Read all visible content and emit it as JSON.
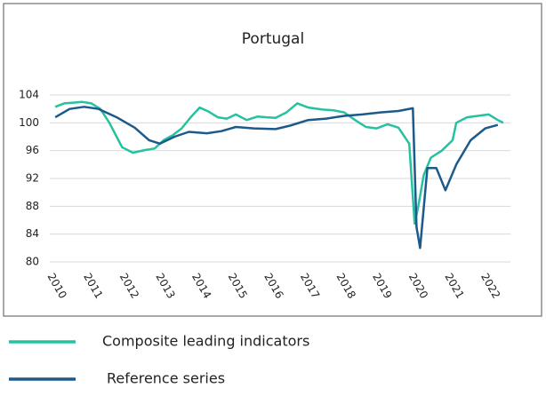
{
  "chart_data": {
    "type": "line",
    "title": "Portugal",
    "xlim": [
      2009.85,
      2022.6
    ],
    "xticks": [
      2010,
      2011,
      2012,
      2013,
      2014,
      2015,
      2016,
      2017,
      2018,
      2019,
      2020,
      2021,
      2022
    ],
    "ylim": [
      80,
      104
    ],
    "yticks": [
      80,
      84,
      88,
      92,
      96,
      100,
      104
    ],
    "grid": true,
    "series": [
      {
        "name": "Composite leading indicators",
        "color": "#26c2a0",
        "x": [
          2010,
          2010.25,
          2010.5,
          2010.75,
          2011,
          2011.25,
          2011.5,
          2011.85,
          2012.15,
          2012.5,
          2012.75,
          2013,
          2013.25,
          2013.5,
          2013.75,
          2014,
          2014.25,
          2014.5,
          2014.75,
          2015,
          2015.3,
          2015.6,
          2015.85,
          2016.1,
          2016.4,
          2016.7,
          2017.0,
          2017.4,
          2017.7,
          2018.0,
          2018.3,
          2018.6,
          2018.9,
          2019.2,
          2019.5,
          2019.8,
          2019.95,
          2020.05,
          2020.2,
          2020.4,
          2020.7,
          2021.0,
          2021.1,
          2021.4,
          2021.7,
          2022.0,
          2022.25,
          2022.4
        ],
        "values": [
          102.3,
          102.8,
          102.9,
          103,
          102.8,
          102,
          100,
          96.5,
          95.7,
          96.1,
          96.3,
          97.5,
          98.2,
          99.2,
          100.8,
          102.2,
          101.6,
          100.8,
          100.6,
          101.2,
          100.4,
          100.9,
          100.8,
          100.7,
          101.5,
          102.8,
          102.2,
          101.9,
          101.8,
          101.5,
          100.4,
          99.4,
          99.2,
          99.8,
          99.3,
          97,
          85.5,
          88,
          92.5,
          95,
          96,
          97.5,
          100,
          100.8,
          101,
          101.2,
          100.4,
          100
        ]
      },
      {
        "name": "Reference series",
        "color": "#1b5a8a",
        "x": [
          2010,
          2010.4,
          2010.8,
          2011.2,
          2011.7,
          2012.2,
          2012.6,
          2012.9,
          2013.3,
          2013.7,
          2014.2,
          2014.6,
          2015,
          2015.5,
          2016.1,
          2016.5,
          2017,
          2017.5,
          2018,
          2018.5,
          2019,
          2019.5,
          2019.9,
          2020.0,
          2020.1,
          2020.3,
          2020.55,
          2020.8,
          2021.1,
          2021.5,
          2021.9,
          2022.25
        ],
        "values": [
          100.8,
          102,
          102.3,
          102,
          100.8,
          99.3,
          97.5,
          97,
          98,
          98.7,
          98.5,
          98.8,
          99.4,
          99.2,
          99.1,
          99.6,
          100.4,
          100.6,
          101,
          101.2,
          101.5,
          101.7,
          102.1,
          85,
          82,
          93.5,
          93.5,
          90.3,
          94,
          97.5,
          99.2,
          99.7
        ]
      }
    ]
  }
}
